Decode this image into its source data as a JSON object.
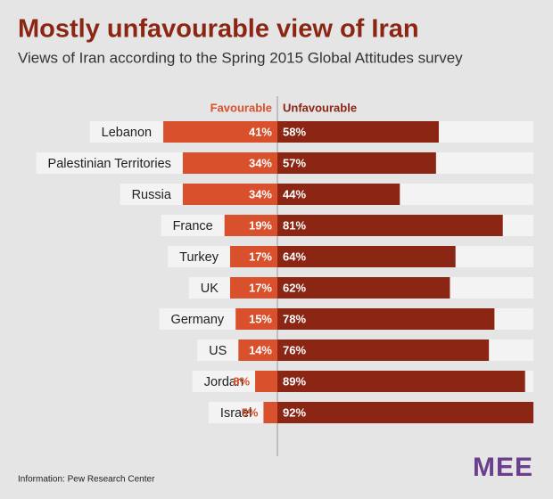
{
  "chart_data": {
    "type": "diverging-bar",
    "title": "Mostly unfavourable view of Iran",
    "subtitle": "Views of Iran according to the Spring 2015 Global Attitudes survey",
    "categories": [
      "Lebanon",
      "Palestinian Territories",
      "Russia",
      "France",
      "Turkey",
      "UK",
      "Germany",
      "US",
      "Jordan",
      "Israel"
    ],
    "series": [
      {
        "name": "Favourable",
        "color": "#d9512c",
        "side": "left",
        "values": [
          41,
          34,
          34,
          19,
          17,
          17,
          15,
          14,
          8,
          5
        ],
        "value_labels": [
          "41%",
          "34%",
          "34%",
          "19%",
          "17%",
          "17%",
          "15%",
          "14%",
          "8%",
          "5%"
        ]
      },
      {
        "name": "Unfavourable",
        "color": "#8b2614",
        "side": "right",
        "values": [
          58,
          57,
          44,
          81,
          64,
          62,
          78,
          76,
          89,
          92
        ],
        "value_labels": [
          "58%",
          "57%",
          "44%",
          "81%",
          "64%",
          "62%",
          "78%",
          "76%",
          "89%",
          "92%"
        ]
      }
    ],
    "source": "Information: Pew Research Center",
    "logo": "MEE"
  }
}
